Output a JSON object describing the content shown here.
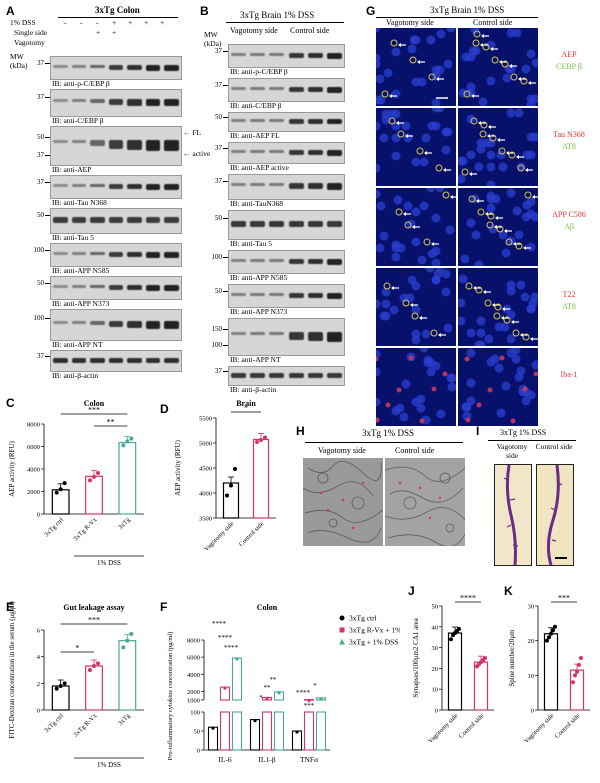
{
  "panels": {
    "A": {
      "letter": "A",
      "title": "3xTg Colon",
      "conditions": [
        {
          "name": "1% DSS",
          "values": [
            "-",
            "-",
            "-",
            "+",
            "+",
            "+",
            "+"
          ]
        },
        {
          "name": "Single side",
          "values": [
            "",
            "",
            "+",
            "+",
            "",
            "",
            ""
          ]
        },
        {
          "name": "Vagotomy",
          "values": [
            "",
            "",
            "",
            "",
            "",
            "",
            ""
          ]
        }
      ],
      "mw_label": "MW (kDa)",
      "blots": [
        {
          "mw": "37",
          "ib": "IB: anti-p-C/EBP β"
        },
        {
          "mw": "37",
          "ib": "IB: anti-C/EBP β"
        },
        {
          "mw": "50",
          "mw2": "37",
          "ib": "IB: anti-AEP",
          "fl": "FL",
          "active": "active"
        },
        {
          "mw": "37",
          "ib": "IB: anti-Tau N368"
        },
        {
          "mw": "50",
          "ib": "IB: anti-Tau 5"
        },
        {
          "mw": "100",
          "ib": "IB: anti-APP N585"
        },
        {
          "mw": "50",
          "ib": "IB: anti-APP N373"
        },
        {
          "mw": "100",
          "ib": "IB: anti-APP NT"
        },
        {
          "mw": "37",
          "ib": "IB: anti-β-actin"
        }
      ]
    },
    "B": {
      "letter": "B",
      "title": "3xTg Brain 1% DSS",
      "sides": [
        "Vagotomy side",
        "Control side"
      ],
      "mw_label": "MW (kDa)",
      "blots": [
        {
          "mw": "37",
          "ib": "IB: anti-p-C/EBP β"
        },
        {
          "mw": "37",
          "ib": "IB: anti-C/EBP β"
        },
        {
          "mw": "50",
          "ib": "IB: anti-AEP FL"
        },
        {
          "mw": "37",
          "ib": "IB: anti-AEP active"
        },
        {
          "mw": "37",
          "ib": "IB: anti-TauN368"
        },
        {
          "mw": "50",
          "ib": "IB: anti-Tau 5"
        },
        {
          "mw": "100",
          "ib": "IB: anti-APP N585"
        },
        {
          "mw": "50",
          "ib": "IB: anti-APP N373"
        },
        {
          "mw": "150",
          "mw2": "100",
          "ib": "IB: anti-APP NT"
        },
        {
          "mw": "37",
          "ib": "IB: anti-β-actin"
        }
      ]
    },
    "G": {
      "letter": "G",
      "title": "3xTg Brain 1% DSS",
      "columns": [
        "Vagotomy side",
        "Control side"
      ],
      "rows": [
        {
          "red": "AEP",
          "green": "CEBP β"
        },
        {
          "red": "Tau N368",
          "green": "AT8"
        },
        {
          "red": "APP C586",
          "green": "Aβ"
        },
        {
          "red": "T22",
          "green": "AT8"
        },
        {
          "red": "Iba-1",
          "green": ""
        }
      ]
    },
    "H": {
      "letter": "H",
      "title": "3xTg 1% DSS",
      "columns": [
        "Vagotomy side",
        "Control side"
      ]
    },
    "I": {
      "letter": "I",
      "title": "3xTg 1% DSS",
      "columns": [
        "Vagotomy side",
        "Control side"
      ]
    }
  },
  "chart_data": [
    {
      "id": "C",
      "type": "bar",
      "title": "Colon",
      "categories": [
        "3xTg ctrl",
        "3xTg R-Vx",
        "3xTg"
      ],
      "group_label": "1% DSS",
      "values": [
        2150,
        3350,
        6350
      ],
      "points": [
        [
          1900,
          2200,
          2750
        ],
        [
          3000,
          3300,
          3650
        ],
        [
          6100,
          6450,
          6700
        ]
      ],
      "ylabel": "AEP activity (RFU)",
      "ylim": [
        0,
        8000
      ],
      "yticks": [
        "0",
        "2000",
        "4000",
        "6000",
        "8000"
      ],
      "sig": [
        "***",
        "**"
      ],
      "colors": [
        "#000000",
        "#d6336c",
        "#4aa89a"
      ]
    },
    {
      "id": "D",
      "type": "bar",
      "title": "Brain",
      "categories": [
        "Vagotomy side",
        "Control side"
      ],
      "values": [
        4200,
        5070
      ],
      "points": [
        [
          3950,
          4150,
          4480
        ],
        [
          5020,
          5060,
          5110
        ]
      ],
      "ylabel": "AEP activity (RFU)",
      "ylim": [
        3500,
        5500
      ],
      "yticks": [
        "3500",
        "4000",
        "4500",
        "5000",
        "5500"
      ],
      "sig": [
        "*"
      ],
      "colors": [
        "#000000",
        "#d6336c"
      ]
    },
    {
      "id": "E",
      "type": "bar",
      "title": "Gut leakage assay",
      "categories": [
        "3xTg ctrl",
        "3xTg R-Vx",
        "3xTg"
      ],
      "group_label": "1% DSS",
      "values": [
        1.8,
        3.3,
        5.2
      ],
      "points": [
        [
          1.6,
          1.8,
          2.0
        ],
        [
          3.0,
          3.3,
          3.5
        ],
        [
          4.7,
          5.2,
          5.7
        ]
      ],
      "ylabel": "FITC-Dextran concentration in the serum (μg/μl)",
      "ylim": [
        0,
        6
      ],
      "yticks": [
        "0",
        "2",
        "4",
        "6"
      ],
      "sig": [
        "*",
        "***"
      ],
      "colors": [
        "#000000",
        "#d6336c",
        "#4aa89a"
      ]
    },
    {
      "id": "F",
      "type": "bar",
      "title": "Colon",
      "categories": [
        "IL-6",
        "IL1-β",
        "TNFα"
      ],
      "series": [
        {
          "name": "3xTg ctrl",
          "values": [
            60,
            80,
            50
          ]
        },
        {
          "name": "3xTg R-Vx + 1% DSS",
          "values": [
            2500,
            1300,
            1050
          ]
        },
        {
          "name": "3xTg + 1% DSS",
          "values": [
            5900,
            1950,
            1250
          ]
        }
      ],
      "ylabel": "Pro-inflammatory cytokine concentration (pg/ml)",
      "yticks": [
        "0",
        "50",
        "100",
        "1000",
        "2000",
        "4000",
        "6000",
        "8000"
      ],
      "sig": [
        "****",
        "****",
        "****",
        "*",
        "**",
        "**",
        "****",
        "***",
        "*"
      ],
      "colors": [
        "#000000",
        "#d6336c",
        "#4aa89a"
      ]
    },
    {
      "id": "J",
      "type": "bar",
      "categories": [
        "Vagotomy side",
        "Control side"
      ],
      "values": [
        37,
        23
      ],
      "points": [
        [
          34,
          36,
          37,
          38,
          39
        ],
        [
          21,
          22,
          23,
          24,
          25
        ]
      ],
      "ylabel": "Synapses/100μm2 CA1 area",
      "ylim": [
        0,
        50
      ],
      "yticks": [
        "0",
        "10",
        "20",
        "30",
        "40",
        "50"
      ],
      "sig": [
        "****"
      ],
      "colors": [
        "#000000",
        "#d6336c"
      ]
    },
    {
      "id": "K",
      "type": "bar",
      "categories": [
        "Vagotomy side",
        "Control side"
      ],
      "values": [
        22,
        11.5
      ],
      "points": [
        [
          20,
          21,
          22,
          23,
          24
        ],
        [
          8,
          10,
          11,
          13,
          15
        ]
      ],
      "ylabel": "Spine number/20μm",
      "ylim": [
        0,
        30
      ],
      "yticks": [
        "0",
        "10",
        "20",
        "30"
      ],
      "sig": [
        "***"
      ],
      "colors": [
        "#000000",
        "#d6336c"
      ]
    }
  ]
}
